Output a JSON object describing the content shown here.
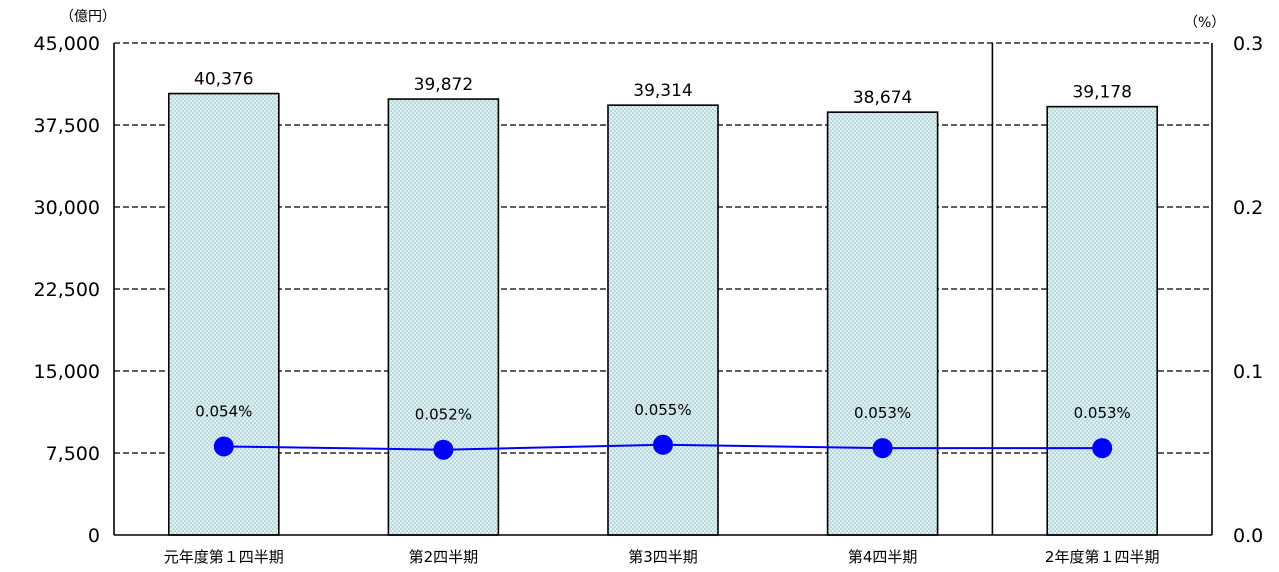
{
  "chart_data": {
    "type": "bar",
    "categories": [
      "元年度第１四半期",
      "第2四半期",
      "第3四半期",
      "第4四半期",
      "2年度第１四半期"
    ],
    "series": [
      {
        "type": "bar",
        "axis": "left",
        "values": [
          40376,
          39872,
          39314,
          38674,
          39178
        ],
        "labels": [
          "40,376",
          "39,872",
          "39,314",
          "38,674",
          "39,178"
        ],
        "fill": "#cfe6ea"
      },
      {
        "type": "line",
        "axis": "right",
        "values": [
          0.054,
          0.052,
          0.055,
          0.053,
          0.053
        ],
        "labels": [
          "0.054%",
          "0.052%",
          "0.055%",
          "0.053%",
          "0.053%"
        ],
        "color": "#0000ff"
      }
    ],
    "y_left": {
      "unit": "（億円）",
      "min": 0,
      "max": 45000,
      "tick_values": [
        0,
        7500,
        15000,
        22500,
        30000,
        37500,
        45000
      ],
      "tick_labels": [
        "0",
        "7,500",
        "15,000",
        "22,500",
        "30,000",
        "37,500",
        "45,000"
      ]
    },
    "y_right": {
      "unit": "（%）",
      "min": 0,
      "max": 0.3,
      "tick_values": [
        0,
        0.1,
        0.2,
        0.3
      ],
      "tick_labels": [
        "0.0",
        "0.1",
        "0.2",
        "0.3"
      ]
    },
    "gridlines": "dashed",
    "separator_after_category": 3
  }
}
